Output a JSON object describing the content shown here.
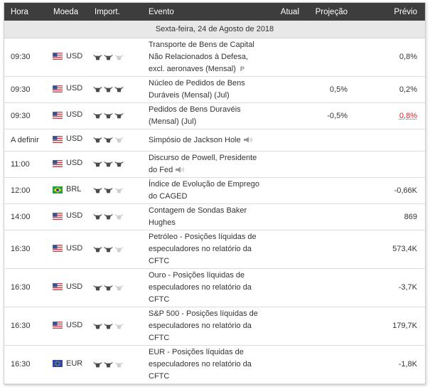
{
  "header": {
    "time": "Hora",
    "currency": "Moeda",
    "importance": "Import.",
    "event": "Evento",
    "actual": "Atual",
    "forecast": "Projeção",
    "previous": "Prévio"
  },
  "date_label": "Sexta-feira, 24 de Agosto de 2018",
  "rows": [
    {
      "time": "09:30",
      "flag": "US",
      "currency": "USD",
      "bulls": 2,
      "event_lines": [
        "Transporte de Bens de Capital",
        "Não Relacionados à Defesa,",
        "excl. aeronaves (Mensal)"
      ],
      "icon": "preliminary-icon",
      "icon_text": "P",
      "actual": "",
      "forecast": "",
      "previous": "0,8%",
      "previous_worse": false
    },
    {
      "time": "09:30",
      "flag": "US",
      "currency": "USD",
      "bulls": 3,
      "event_lines": [
        "Núcleo de Pedidos de Bens",
        "Duráveis (Mensal) (Jul)"
      ],
      "icon": "",
      "actual": "",
      "forecast": "0,5%",
      "previous": "0,2%",
      "previous_worse": false
    },
    {
      "time": "09:30",
      "flag": "US",
      "currency": "USD",
      "bulls": 3,
      "event_lines": [
        "Pedidos de Bens Duravéis",
        "(Mensal) (Jul)"
      ],
      "icon": "",
      "actual": "",
      "forecast": "-0,5%",
      "previous": "0,8%",
      "previous_worse": true
    },
    {
      "time": "A definir",
      "flag": "US",
      "currency": "USD",
      "bulls": 2,
      "event_lines": [
        "Simpósio de Jackson Hole"
      ],
      "icon": "speech-icon",
      "actual": "",
      "forecast": "",
      "previous": "",
      "previous_worse": false
    },
    {
      "time": "11:00",
      "flag": "US",
      "currency": "USD",
      "bulls": 3,
      "event_lines": [
        "Discurso de Powell, Presidente",
        "do Fed"
      ],
      "icon": "speech-icon",
      "actual": "",
      "forecast": "",
      "previous": "",
      "previous_worse": false
    },
    {
      "time": "12:00",
      "flag": "BR",
      "currency": "BRL",
      "bulls": 2,
      "event_lines": [
        "Índice de Evolução de Emprego",
        "do CAGED"
      ],
      "icon": "",
      "actual": "",
      "forecast": "",
      "previous": "-0,66K",
      "previous_worse": false
    },
    {
      "time": "14:00",
      "flag": "US",
      "currency": "USD",
      "bulls": 2,
      "event_lines": [
        "Contagem de Sondas Baker",
        "Hughes"
      ],
      "icon": "",
      "actual": "",
      "forecast": "",
      "previous": "869",
      "previous_worse": false
    },
    {
      "time": "16:30",
      "flag": "US",
      "currency": "USD",
      "bulls": 2,
      "event_lines": [
        "Petróleo - Posições líquidas de",
        "especuladores no relatório da",
        "CFTC"
      ],
      "icon": "",
      "actual": "",
      "forecast": "",
      "previous": "573,4K",
      "previous_worse": false
    },
    {
      "time": "16:30",
      "flag": "US",
      "currency": "USD",
      "bulls": 2,
      "event_lines": [
        "Ouro - Posições líquidas de",
        "especuladores no relatório da",
        "CFTC"
      ],
      "icon": "",
      "actual": "",
      "forecast": "",
      "previous": "-3,7K",
      "previous_worse": false
    },
    {
      "time": "16:30",
      "flag": "US",
      "currency": "USD",
      "bulls": 2,
      "event_lines": [
        "S&P 500 - Posições líquidas de",
        "especuladores no relatório da",
        "CFTC"
      ],
      "icon": "",
      "actual": "",
      "forecast": "",
      "previous": "179,7K",
      "previous_worse": false
    },
    {
      "time": "16:30",
      "flag": "EU",
      "currency": "EUR",
      "bulls": 2,
      "event_lines": [
        "EUR - Posições líquidas de",
        "especuladores no relatório da",
        "CFTC"
      ],
      "icon": "",
      "actual": "",
      "forecast": "",
      "previous": "-1,8K",
      "previous_worse": false
    }
  ]
}
